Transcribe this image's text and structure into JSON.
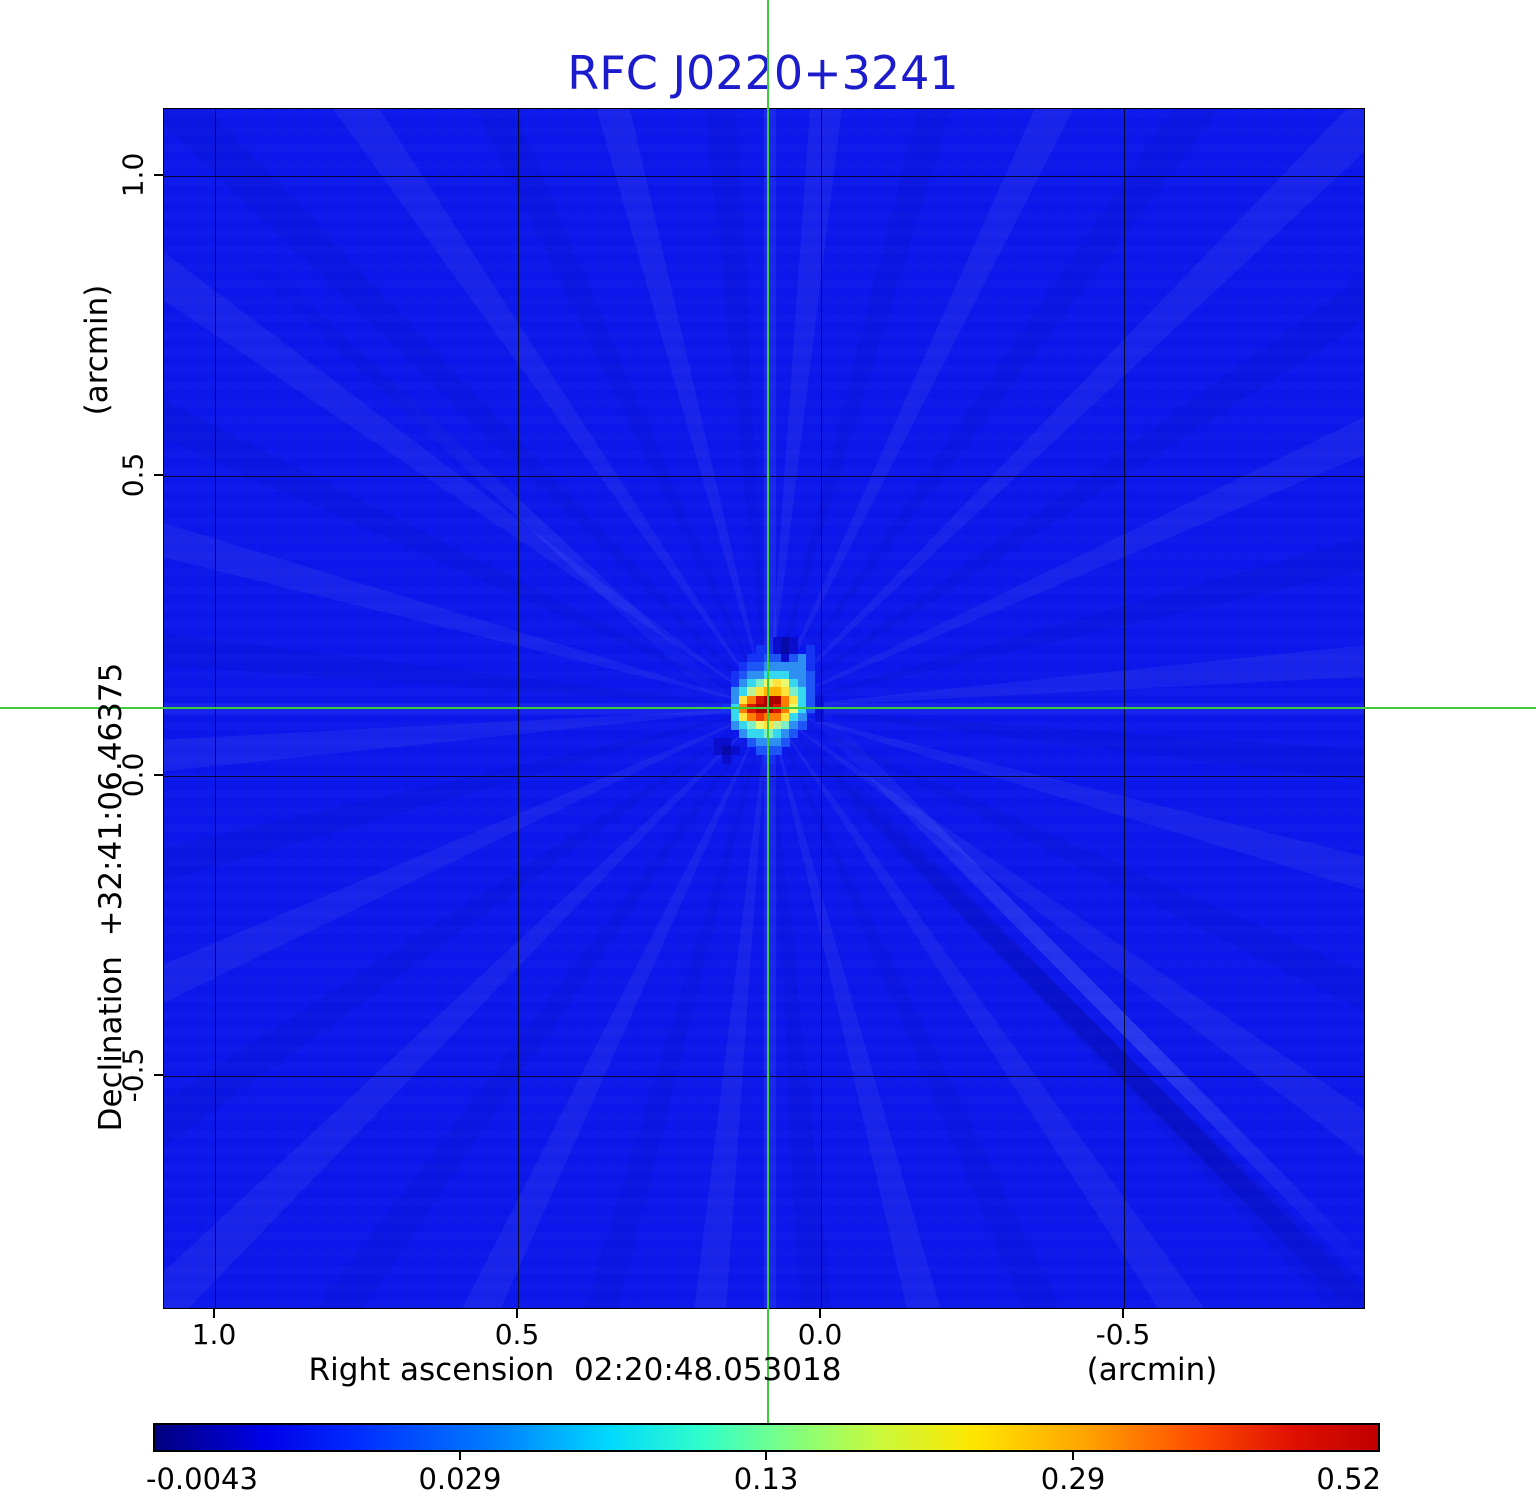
{
  "title": {
    "text": "RFC J0220+3241",
    "color": "#1c1ccd"
  },
  "plot": {
    "field_color": "#0b17ec",
    "grid_color": "rgba(0,0,0,0.78)"
  },
  "crosshair": {
    "color": "#3bcb3b"
  },
  "y_axis": {
    "unit_label": "(arcmin)",
    "axis_label": "Declination  +32:41:06.46375",
    "ticks": [
      "1.0",
      "0.5",
      "0.0",
      "-0.5"
    ]
  },
  "x_axis": {
    "axis_label": "Right ascension  02:20:48.053018",
    "unit_label": "(arcmin)",
    "ticks": [
      "1.0",
      "0.5",
      "0.0",
      "-0.5"
    ]
  },
  "colorbar": {
    "tick_labels": [
      "-0.0043",
      "0.029",
      "0.13",
      "0.29",
      "0.52"
    ],
    "gradient": [
      "#00007f 0%",
      "#0000e8 9%",
      "#0028ff 16%",
      "#0080ff 28%",
      "#00d8ff 37%",
      "#33ffc8 45%",
      "#80ff80 52%",
      "#c8f93e 59%",
      "#ffe600 67%",
      "#ffa400 76%",
      "#ff4e00 85%",
      "#e01000 93%",
      "#c00000 100%"
    ]
  },
  "chart_data": {
    "type": "heatmap",
    "title": "RFC J0220+3241",
    "xlabel": "Right ascension  02:20:48.053018 (arcmin)",
    "ylabel": "Declination  +32:41:06.46375 (arcmin)",
    "x_ticks_arcmin": [
      1.0,
      0.5,
      0.0,
      -0.5
    ],
    "y_ticks_arcmin": [
      1.0,
      0.5,
      0.0,
      -0.5
    ],
    "x_range_arcmin": [
      1.09,
      -0.9
    ],
    "y_range_arcmin": [
      -0.89,
      1.11
    ],
    "grid": true,
    "colormap": "jet",
    "colorbar_tick_values": [
      -0.0043,
      0.029,
      0.13,
      0.29,
      0.52
    ],
    "peak_value_jy": 0.52,
    "background_level_jy": 0.0,
    "peak_offset_arcmin": {
      "x": 0.09,
      "y": 0.11
    },
    "crosshair_marker": "green cross through peak position",
    "hotspot": {
      "cell": 8.4,
      "palette": {
        "1": "#1433f2",
        "2": "#1e55f7",
        "3": "#2f8ef2",
        "4": "#35d8ee",
        "5": "#7fefc8",
        "6": "#bdf396",
        "7": "#ebf96e",
        "8": "#ffe33a",
        "9": "#ffb400",
        "A": "#ff7e00",
        "B": "#f03c00",
        "C": "#d81400",
        "D": "#ae0000",
        "n": "#0a0ecc",
        "N": "#0709a8",
        "m": "#0a12d8"
      },
      "rows": [
        "000000000nNn00000",
        "000000011nNn01000",
        "0000001122n231000",
        "00000122333331000",
        "00001233444332000",
        "00001345787432000",
        "00003468998542000",
        "000038ACDDA842m00",
        "00014ACDDCA742m00",
        "000048ABAA8430m00",
        "00003457865320000",
        "00000344543200000",
        "00nn0023332000000",
        "00nNn002220000000",
        "000n0000100000000",
        "00000000000000000",
        "00000000000000000"
      ]
    }
  }
}
